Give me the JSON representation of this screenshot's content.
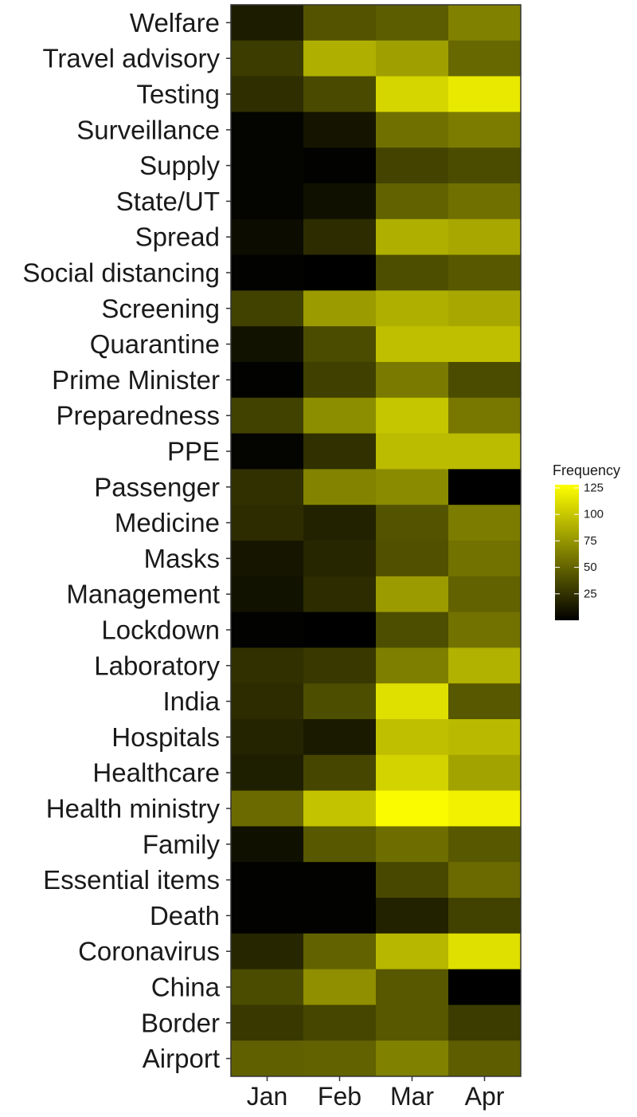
{
  "chart_data": {
    "type": "heatmap",
    "title": "",
    "xlabel": "",
    "ylabel": "",
    "x_categories": [
      "Jan",
      "Feb",
      "Mar",
      "Apr"
    ],
    "y_categories": [
      "Welfare",
      "Travel advisory",
      "Testing",
      "Surveillance",
      "Supply",
      "State/UT",
      "Spread",
      "Social distancing",
      "Screening",
      "Quarantine",
      "Prime Minister",
      "Preparedness",
      "PPE",
      "Passenger",
      "Medicine",
      "Masks",
      "Management",
      "Lockdown",
      "Laboratory",
      "India",
      "Hospitals",
      "Healthcare",
      "Health ministry",
      "Family",
      "Essential items",
      "Death",
      "Coronavirus",
      "China",
      "Border",
      "Airport"
    ],
    "values": [
      [
        14,
        42,
        46,
        65
      ],
      [
        30,
        88,
        80,
        52
      ],
      [
        23,
        37,
        107,
        117
      ],
      [
        2,
        10,
        56,
        62
      ],
      [
        2,
        1,
        34,
        38
      ],
      [
        2,
        8,
        49,
        56
      ],
      [
        6,
        22,
        88,
        84
      ],
      [
        1,
        0,
        39,
        44
      ],
      [
        33,
        78,
        88,
        84
      ],
      [
        9,
        38,
        96,
        96
      ],
      [
        1,
        32,
        61,
        38
      ],
      [
        33,
        71,
        99,
        60
      ],
      [
        2,
        24,
        94,
        94
      ],
      [
        24,
        66,
        70,
        0
      ],
      [
        22,
        17,
        42,
        62
      ],
      [
        11,
        19,
        40,
        57
      ],
      [
        9,
        22,
        78,
        49
      ],
      [
        1,
        0,
        39,
        57
      ],
      [
        24,
        28,
        63,
        89
      ],
      [
        22,
        39,
        112,
        44
      ],
      [
        18,
        13,
        96,
        93
      ],
      [
        15,
        35,
        106,
        82
      ],
      [
        53,
        98,
        126,
        121
      ],
      [
        8,
        44,
        55,
        44
      ],
      [
        1,
        1,
        36,
        53
      ],
      [
        1,
        1,
        17,
        33
      ],
      [
        19,
        49,
        92,
        112
      ],
      [
        38,
        72,
        44,
        0
      ],
      [
        28,
        35,
        44,
        30
      ],
      [
        48,
        49,
        65,
        47
      ]
    ],
    "legend": {
      "title": "Frequency",
      "ticks": [
        25,
        50,
        75,
        100,
        125
      ],
      "range": [
        0,
        128
      ],
      "low_color": "#000000",
      "high_color": "#FFFF00"
    }
  }
}
